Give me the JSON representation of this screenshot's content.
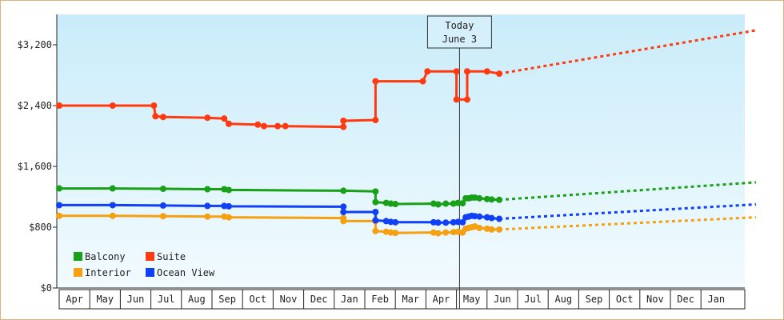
{
  "chart_data": {
    "type": "line",
    "title": "",
    "xlabel": "",
    "ylabel": "",
    "ylim": [
      0,
      3600
    ],
    "grid": false,
    "legend_position": "bottom-left",
    "y_ticks": [
      {
        "value": 0,
        "label": "$0"
      },
      {
        "value": 800,
        "label": "$800"
      },
      {
        "value": 1600,
        "label": "$1,600"
      },
      {
        "value": 2400,
        "label": "$2,400"
      },
      {
        "value": 3200,
        "label": "$3,200"
      }
    ],
    "x_months": [
      "Apr",
      "May",
      "Jun",
      "Jul",
      "Aug",
      "Sep",
      "Oct",
      "Nov",
      "Dec",
      "Jan",
      "Feb",
      "Mar",
      "Apr",
      "May",
      "Jun",
      "Jul",
      "Aug",
      "Sep",
      "Oct",
      "Nov",
      "Dec",
      "Jan"
    ],
    "today": {
      "label_line1": "Today",
      "label_line2": "June 3",
      "month_pos": 13.1
    },
    "series": [
      {
        "name": "Balcony",
        "color": "#18a018",
        "points": [
          [
            0.0,
            1310
          ],
          [
            1.75,
            1310
          ],
          [
            3.4,
            1305
          ],
          [
            4.85,
            1300
          ],
          [
            5.4,
            1300
          ],
          [
            5.55,
            1290
          ],
          [
            9.3,
            1280
          ],
          [
            10.35,
            1270
          ],
          [
            10.35,
            1130
          ],
          [
            10.7,
            1120
          ],
          [
            10.85,
            1110
          ],
          [
            11.0,
            1105
          ],
          [
            12.25,
            1110
          ],
          [
            12.4,
            1100
          ],
          [
            12.65,
            1110
          ],
          [
            12.9,
            1110
          ],
          [
            13.05,
            1120
          ],
          [
            13.2,
            1115
          ],
          [
            13.3,
            1180
          ],
          [
            13.4,
            1180
          ],
          [
            13.5,
            1190
          ],
          [
            13.6,
            1190
          ],
          [
            13.75,
            1180
          ],
          [
            14.0,
            1170
          ],
          [
            14.15,
            1165
          ],
          [
            14.4,
            1160
          ]
        ],
        "projection": [
          [
            14.4,
            1160
          ],
          [
            22.8,
            1390
          ]
        ]
      },
      {
        "name": "Suite",
        "color": "#ff3a10",
        "points": [
          [
            0.0,
            2400
          ],
          [
            1.75,
            2400
          ],
          [
            3.1,
            2400
          ],
          [
            3.15,
            2260
          ],
          [
            3.4,
            2250
          ],
          [
            4.85,
            2240
          ],
          [
            5.4,
            2230
          ],
          [
            5.55,
            2160
          ],
          [
            6.5,
            2150
          ],
          [
            6.7,
            2130
          ],
          [
            7.15,
            2130
          ],
          [
            7.4,
            2130
          ],
          [
            9.3,
            2120
          ],
          [
            9.3,
            2200
          ],
          [
            10.35,
            2210
          ],
          [
            10.35,
            2720
          ],
          [
            11.9,
            2720
          ],
          [
            12.05,
            2850
          ],
          [
            13.0,
            2850
          ],
          [
            13.0,
            2480
          ],
          [
            13.35,
            2480
          ],
          [
            13.35,
            2850
          ],
          [
            14.0,
            2850
          ],
          [
            14.4,
            2820
          ]
        ],
        "projection": [
          [
            14.4,
            2820
          ],
          [
            22.8,
            3390
          ]
        ]
      },
      {
        "name": "Interior",
        "color": "#f5a010",
        "points": [
          [
            0.0,
            950
          ],
          [
            1.75,
            950
          ],
          [
            3.4,
            945
          ],
          [
            4.85,
            940
          ],
          [
            5.4,
            940
          ],
          [
            5.55,
            930
          ],
          [
            9.3,
            920
          ],
          [
            9.3,
            880
          ],
          [
            10.35,
            880
          ],
          [
            10.35,
            750
          ],
          [
            10.7,
            740
          ],
          [
            10.85,
            730
          ],
          [
            11.0,
            725
          ],
          [
            12.25,
            730
          ],
          [
            12.4,
            720
          ],
          [
            12.65,
            730
          ],
          [
            12.9,
            735
          ],
          [
            13.05,
            740
          ],
          [
            13.2,
            730
          ],
          [
            13.3,
            780
          ],
          [
            13.4,
            790
          ],
          [
            13.5,
            800
          ],
          [
            13.6,
            810
          ],
          [
            13.75,
            790
          ],
          [
            14.0,
            780
          ],
          [
            14.15,
            770
          ],
          [
            14.4,
            770
          ]
        ],
        "projection": [
          [
            14.4,
            770
          ],
          [
            22.8,
            930
          ]
        ]
      },
      {
        "name": "Ocean View",
        "color": "#1040f5",
        "points": [
          [
            0.0,
            1090
          ],
          [
            1.75,
            1090
          ],
          [
            3.4,
            1085
          ],
          [
            4.85,
            1080
          ],
          [
            5.4,
            1080
          ],
          [
            5.55,
            1075
          ],
          [
            9.3,
            1070
          ],
          [
            9.3,
            1000
          ],
          [
            10.35,
            1000
          ],
          [
            10.35,
            890
          ],
          [
            10.7,
            880
          ],
          [
            10.85,
            870
          ],
          [
            11.0,
            865
          ],
          [
            12.25,
            865
          ],
          [
            12.4,
            860
          ],
          [
            12.65,
            860
          ],
          [
            12.9,
            865
          ],
          [
            13.05,
            870
          ],
          [
            13.2,
            865
          ],
          [
            13.3,
            930
          ],
          [
            13.4,
            940
          ],
          [
            13.5,
            950
          ],
          [
            13.6,
            945
          ],
          [
            13.75,
            940
          ],
          [
            14.0,
            930
          ],
          [
            14.15,
            920
          ],
          [
            14.4,
            910
          ]
        ],
        "projection": [
          [
            14.4,
            910
          ],
          [
            22.8,
            1100
          ]
        ]
      }
    ],
    "legend": [
      {
        "series": "Balcony",
        "color": "#18a018"
      },
      {
        "series": "Suite",
        "color": "#ff3a10"
      },
      {
        "series": "Interior",
        "color": "#f5a010"
      },
      {
        "series": "Ocean View",
        "color": "#1040f5"
      }
    ]
  }
}
